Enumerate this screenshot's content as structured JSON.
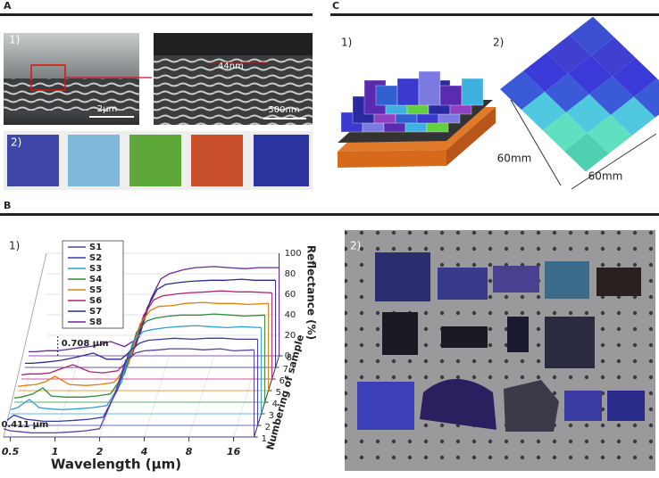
{
  "panel_a": {
    "label": "A",
    "sub1": "1)",
    "scale_left": "2μm",
    "feature": "44nm",
    "scale_right": "500nm",
    "sub2": "2)"
  },
  "panel_c": {
    "label": "C",
    "sub1": "1)",
    "sub2": "2)",
    "dim_left": "60mm",
    "dim_bottom": "60mm"
  },
  "panel_b": {
    "label": "B",
    "sub1": "1)",
    "sub2": "2)"
  },
  "chart_data": {
    "type": "waterfall3d",
    "x_label": "Wavelength (μm)",
    "y_label": "Reflectance (%)",
    "z_label": "Numbering of sample",
    "log_x": true,
    "xlim": [
      0.45,
      22
    ],
    "xticks": [
      0.5,
      1,
      2,
      4,
      8,
      16
    ],
    "ylim": [
      0,
      100
    ],
    "yticks": [
      0,
      20,
      40,
      60,
      80,
      100
    ],
    "zticks": [
      1,
      2,
      3,
      4,
      5,
      6,
      7,
      8
    ],
    "annotations": [
      {
        "text": "0.708 μm",
        "x": 0.708
      },
      {
        "text": "0.411 μm",
        "x": 0.411
      }
    ],
    "x": [
      0.45,
      0.5,
      0.6,
      0.7,
      0.8,
      1,
      1.3,
      1.6,
      2,
      2.5,
      3,
      3.5,
      4,
      5,
      6,
      8,
      10,
      13,
      16,
      22
    ],
    "series": [
      {
        "name": "S1",
        "color": "#5b3fa0",
        "values": [
          8,
          6,
          5,
          4,
          4,
          4,
          5,
          6,
          8,
          40,
          75,
          82,
          84,
          85,
          86,
          86,
          85,
          86,
          84,
          85
        ]
      },
      {
        "name": "S2",
        "color": "#3a3aa8",
        "values": [
          5,
          10,
          6,
          5,
          4,
          4,
          5,
          6,
          8,
          35,
          72,
          80,
          83,
          84,
          85,
          84,
          85,
          85,
          84,
          84
        ]
      },
      {
        "name": "S3",
        "color": "#2f9fd0",
        "values": [
          4,
          6,
          14,
          6,
          5,
          4,
          5,
          6,
          8,
          30,
          70,
          80,
          82,
          84,
          85,
          86,
          85,
          84,
          85,
          84
        ]
      },
      {
        "name": "S4",
        "color": "#2e8b3d",
        "values": [
          4,
          5,
          8,
          14,
          6,
          5,
          5,
          6,
          8,
          28,
          68,
          79,
          82,
          84,
          85,
          85,
          86,
          85,
          84,
          85
        ]
      },
      {
        "name": "S5",
        "color": "#e0800a",
        "values": [
          4,
          5,
          6,
          9,
          14,
          6,
          5,
          6,
          8,
          25,
          65,
          78,
          82,
          83,
          85,
          86,
          85,
          85,
          84,
          85
        ]
      },
      {
        "name": "S6",
        "color": "#b02070",
        "values": [
          4,
          5,
          5,
          6,
          9,
          14,
          7,
          6,
          8,
          22,
          62,
          77,
          81,
          83,
          84,
          85,
          86,
          85,
          85,
          84
        ]
      },
      {
        "name": "S7",
        "color": "#2a2a90",
        "values": [
          4,
          4,
          5,
          6,
          7,
          10,
          14,
          8,
          8,
          20,
          58,
          76,
          81,
          83,
          84,
          85,
          85,
          86,
          85,
          85
        ]
      },
      {
        "name": "S8",
        "color": "#6a2a9a",
        "values": [
          4,
          4,
          5,
          5,
          6,
          8,
          10,
          14,
          9,
          18,
          55,
          75,
          80,
          84,
          86,
          87,
          86,
          85,
          86,
          86
        ]
      }
    ]
  }
}
